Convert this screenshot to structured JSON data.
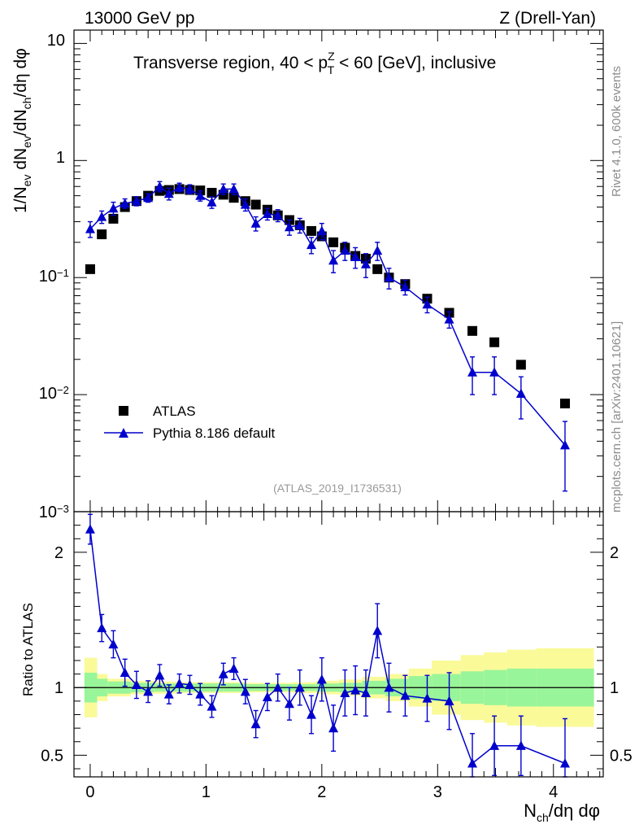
{
  "header": {
    "energy_label": "13000 GeV pp",
    "process_label": "Z (Drell-Yan)"
  },
  "side_labels": {
    "rivet": "Rivet 4.1.0,  600k events",
    "mcplots": "mcplots.cern.ch [arXiv:2401.10621]"
  },
  "chart_data": [
    {
      "type": "scatter",
      "panel": "main",
      "title_parts": {
        "before": "Transverse region, 40 < p",
        "sup": "Z",
        "sub": "T",
        "after": " < 60 [GeV], inclusive"
      },
      "analysis_id": "(ATLAS_2019_I1736531)",
      "ylabel": "1/N_ev dN_ev/dN_ch/dη dφ",
      "ylabel_parts": {
        "p1": "1/N",
        "s1": "ev",
        "p2": " dN",
        "s2": "ev",
        "p3": "/dN",
        "s3": "ch",
        "p4": "/dη dφ"
      },
      "yscale": "log",
      "ylim": [
        0.001,
        13
      ],
      "xlim": [
        -0.14,
        4.43
      ],
      "ytick_labels": {
        "t10": "10",
        "t1": "1",
        "t01": "10",
        "t01_exp": "−1",
        "t001": "10",
        "t001_exp": "−2",
        "t0001": "10",
        "t0001_exp": "−3"
      },
      "legend": {
        "position": "bottom-left",
        "atlas": "ATLAS",
        "pythia": "Pythia 8.186 default"
      },
      "series": [
        {
          "name": "ATLAS",
          "marker": "square",
          "color": "#000000",
          "x": [
            0.0,
            0.1,
            0.2,
            0.3,
            0.4,
            0.5,
            0.6,
            0.68,
            0.77,
            0.86,
            0.95,
            1.05,
            1.15,
            1.24,
            1.34,
            1.43,
            1.53,
            1.62,
            1.72,
            1.81,
            1.91,
            2.0,
            2.1,
            2.2,
            2.29,
            2.38,
            2.48,
            2.58,
            2.72,
            2.91,
            3.1,
            3.3,
            3.49,
            3.72,
            4.1
          ],
          "values": [
            0.118,
            0.234,
            0.318,
            0.4,
            0.45,
            0.5,
            0.55,
            0.56,
            0.57,
            0.56,
            0.555,
            0.53,
            0.51,
            0.48,
            0.45,
            0.42,
            0.38,
            0.34,
            0.31,
            0.28,
            0.25,
            0.225,
            0.2,
            0.18,
            0.153,
            0.145,
            0.118,
            0.1,
            0.088,
            0.066,
            0.05,
            0.035,
            0.028,
            0.018,
            0.0084
          ]
        },
        {
          "name": "Pythia 8.186 default",
          "marker": "triangle",
          "color": "#0000cc",
          "x": [
            0.0,
            0.1,
            0.2,
            0.3,
            0.4,
            0.5,
            0.6,
            0.68,
            0.77,
            0.86,
            0.95,
            1.05,
            1.15,
            1.24,
            1.34,
            1.43,
            1.53,
            1.62,
            1.72,
            1.81,
            1.91,
            2.0,
            2.1,
            2.2,
            2.29,
            2.38,
            2.48,
            2.58,
            2.72,
            2.91,
            3.1,
            3.3,
            3.49,
            3.72,
            4.1
          ],
          "values": [
            0.26,
            0.33,
            0.39,
            0.43,
            0.45,
            0.48,
            0.6,
            0.52,
            0.59,
            0.57,
            0.5,
            0.44,
            0.57,
            0.57,
            0.42,
            0.29,
            0.35,
            0.34,
            0.27,
            0.28,
            0.19,
            0.25,
            0.14,
            0.17,
            0.15,
            0.13,
            0.17,
            0.1,
            0.083,
            0.059,
            0.044,
            0.0155,
            0.0155,
            0.0102,
            0.0037
          ],
          "errors": [
            0.04,
            0.04,
            0.05,
            0.04,
            0.04,
            0.04,
            0.06,
            0.06,
            0.05,
            0.05,
            0.05,
            0.05,
            0.06,
            0.06,
            0.05,
            0.04,
            0.04,
            0.04,
            0.04,
            0.04,
            0.03,
            0.04,
            0.03,
            0.03,
            0.03,
            0.03,
            0.03,
            0.02,
            0.012,
            0.009,
            0.007,
            0.0055,
            0.0055,
            0.004,
            0.0022
          ]
        }
      ]
    },
    {
      "type": "line",
      "panel": "ratio",
      "ylabel": "Ratio to ATLAS",
      "xlabel": "N_ch/dη dφ",
      "xlabel_parts": {
        "p1": "N",
        "s1": "ch",
        "p2": "/dη dφ"
      },
      "ylim": [
        0.34,
        2.3
      ],
      "xlim": [
        -0.14,
        4.43
      ],
      "xtick_labels": [
        "0",
        "1",
        "2",
        "3",
        "4"
      ],
      "ytick_labels": [
        "0.5",
        "1",
        "2"
      ],
      "ytick_values": [
        0.5,
        1,
        2
      ],
      "reference_line": 1.0,
      "band_edges": [
        -0.05,
        0.06,
        0.15,
        0.35,
        0.55,
        0.75,
        0.95,
        1.15,
        1.35,
        1.55,
        1.75,
        1.95,
        2.15,
        2.35,
        2.55,
        2.75,
        2.95,
        3.2,
        3.4,
        3.6,
        3.85,
        4.35
      ],
      "band_green": [
        0.11,
        0.065,
        0.045,
        0.035,
        0.03,
        0.03,
        0.03,
        0.03,
        0.025,
        0.025,
        0.025,
        0.03,
        0.035,
        0.05,
        0.065,
        0.085,
        0.1,
        0.12,
        0.13,
        0.14,
        0.14
      ],
      "band_yellow": [
        0.22,
        0.1,
        0.065,
        0.05,
        0.045,
        0.04,
        0.04,
        0.04,
        0.035,
        0.035,
        0.04,
        0.05,
        0.06,
        0.08,
        0.1,
        0.14,
        0.2,
        0.24,
        0.26,
        0.28,
        0.29
      ],
      "band_colors": {
        "green": "#99f599",
        "yellow": "#fafa99"
      },
      "series": [
        {
          "name": "Pythia 8.186 default / ATLAS",
          "color": "#0000cc",
          "x": [
            0.0,
            0.1,
            0.2,
            0.3,
            0.4,
            0.5,
            0.6,
            0.68,
            0.77,
            0.86,
            0.95,
            1.05,
            1.15,
            1.24,
            1.34,
            1.43,
            1.53,
            1.62,
            1.72,
            1.81,
            1.91,
            2.0,
            2.1,
            2.2,
            2.29,
            2.38,
            2.48,
            2.58,
            2.72,
            2.91,
            3.1,
            3.3,
            3.49,
            3.72,
            4.1
          ],
          "values": [
            2.17,
            1.44,
            1.32,
            1.11,
            1.02,
            0.97,
            1.09,
            0.95,
            1.03,
            1.02,
            0.95,
            0.86,
            1.1,
            1.14,
            0.97,
            0.73,
            0.93,
            1.0,
            0.88,
            1.0,
            0.8,
            1.06,
            0.7,
            0.96,
            0.98,
            0.96,
            1.42,
            1.0,
            0.94,
            0.92,
            0.9,
            0.44,
            0.57,
            0.57,
            0.44
          ],
          "errors": [
            0.11,
            0.1,
            0.1,
            0.1,
            0.1,
            0.08,
            0.08,
            0.07,
            0.07,
            0.07,
            0.08,
            0.08,
            0.08,
            0.08,
            0.09,
            0.1,
            0.1,
            0.1,
            0.12,
            0.13,
            0.14,
            0.16,
            0.17,
            0.17,
            0.18,
            0.17,
            0.2,
            0.18,
            0.15,
            0.17,
            0.21,
            0.22,
            0.22,
            0.22,
            0.33
          ]
        }
      ]
    }
  ]
}
